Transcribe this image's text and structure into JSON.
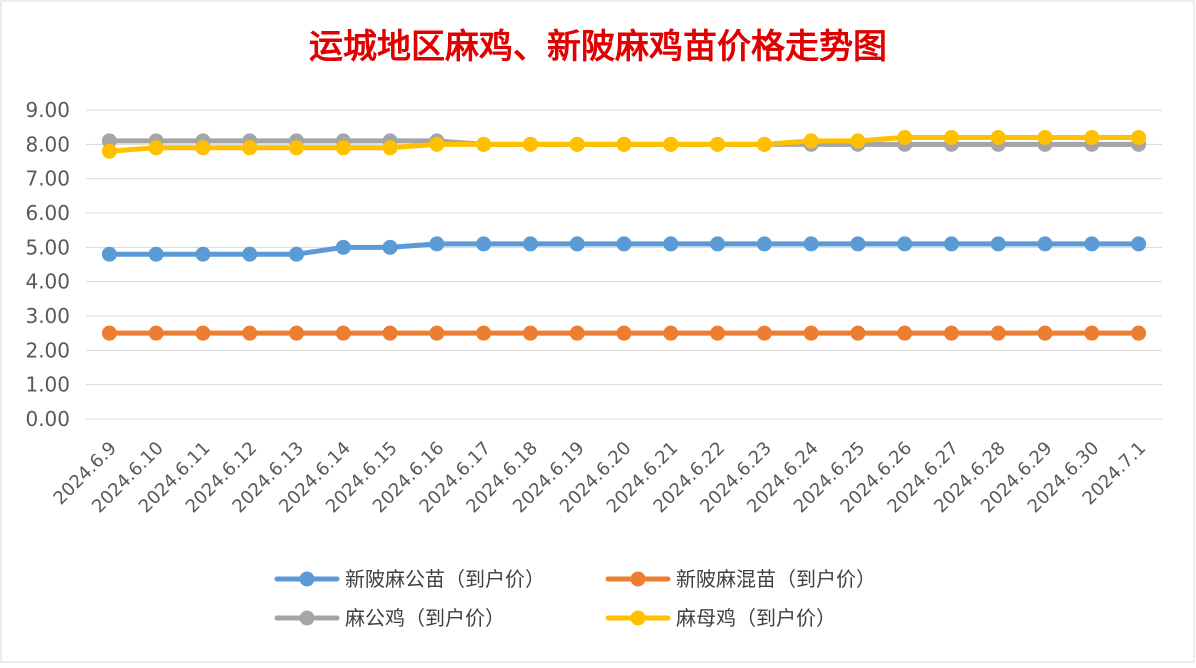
{
  "chart_data": {
    "type": "line",
    "title": "运城地区麻鸡、新陂麻鸡苗价格走势图",
    "xlabel": "",
    "ylabel": "",
    "ylim": [
      0,
      9
    ],
    "yticks": [
      "0.00",
      "1.00",
      "2.00",
      "3.00",
      "4.00",
      "5.00",
      "6.00",
      "7.00",
      "8.00",
      "9.00"
    ],
    "grid": true,
    "legend_position": "bottom",
    "categories": [
      "2024.6.9",
      "2024.6.10",
      "2024.6.11",
      "2024.6.12",
      "2024.6.13",
      "2024.6.14",
      "2024.6.15",
      "2024.6.16",
      "2024.6.17",
      "2024.6.18",
      "2024.6.19",
      "2024.6.20",
      "2024.6.21",
      "2024.6.22",
      "2024.6.23",
      "2024.6.24",
      "2024.6.25",
      "2024.6.26",
      "2024.6.27",
      "2024.6.28",
      "2024.6.29",
      "2024.6.30",
      "2024.7.1"
    ],
    "series": [
      {
        "name": "新陂麻公苗（到户价）",
        "color": "#5B9BD5",
        "values": [
          4.8,
          4.8,
          4.8,
          4.8,
          4.8,
          5.0,
          5.0,
          5.1,
          5.1,
          5.1,
          5.1,
          5.1,
          5.1,
          5.1,
          5.1,
          5.1,
          5.1,
          5.1,
          5.1,
          5.1,
          5.1,
          5.1,
          5.1
        ]
      },
      {
        "name": "新陂麻混苗（到户价）",
        "color": "#ED7D31",
        "values": [
          2.5,
          2.5,
          2.5,
          2.5,
          2.5,
          2.5,
          2.5,
          2.5,
          2.5,
          2.5,
          2.5,
          2.5,
          2.5,
          2.5,
          2.5,
          2.5,
          2.5,
          2.5,
          2.5,
          2.5,
          2.5,
          2.5,
          2.5
        ]
      },
      {
        "name": "麻公鸡（到户价）",
        "color": "#A5A5A5",
        "values": [
          8.1,
          8.1,
          8.1,
          8.1,
          8.1,
          8.1,
          8.1,
          8.1,
          8.0,
          8.0,
          8.0,
          8.0,
          8.0,
          8.0,
          8.0,
          8.0,
          8.0,
          8.0,
          8.0,
          8.0,
          8.0,
          8.0,
          8.0
        ]
      },
      {
        "name": "麻母鸡（到户价）",
        "color": "#FFC000",
        "values": [
          7.8,
          7.9,
          7.9,
          7.9,
          7.9,
          7.9,
          7.9,
          8.0,
          8.0,
          8.0,
          8.0,
          8.0,
          8.0,
          8.0,
          8.0,
          8.1,
          8.1,
          8.2,
          8.2,
          8.2,
          8.2,
          8.2,
          8.2
        ]
      }
    ]
  }
}
